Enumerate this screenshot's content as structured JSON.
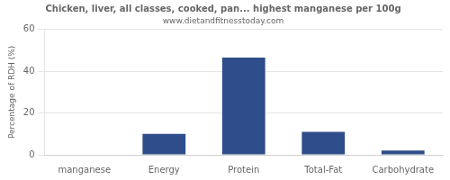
{
  "chart_data": {
    "type": "bar",
    "title": "Chicken, liver, all classes, cooked, pan... highest manganese per 100g",
    "subtitle": "www.dietandfitnesstoday.com",
    "categories": [
      "manganese",
      "Energy",
      "Protein",
      "Total-Fat",
      "Carbohydrate"
    ],
    "values": [
      0.0,
      10.0,
      46.5,
      11.0,
      2.0
    ],
    "color": "#2e4d8a",
    "ylabel": "Percentage of RDH (%)",
    "ylim": [
      0,
      60
    ],
    "yticks": [
      0,
      20,
      40,
      60
    ],
    "grid": true
  }
}
